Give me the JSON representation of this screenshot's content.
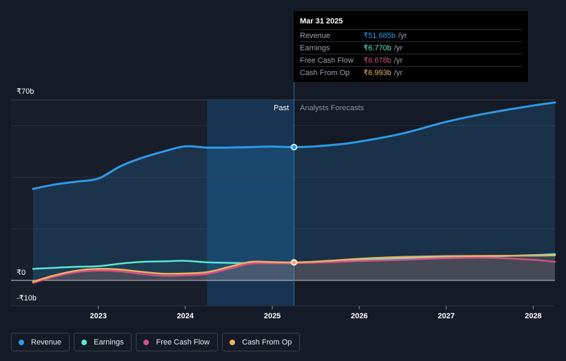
{
  "tooltip": {
    "date": "Mar 31 2025",
    "rows": [
      {
        "name": "Revenue",
        "value": "₹51.685b",
        "unit": "/yr",
        "color": "#2f9ae8"
      },
      {
        "name": "Earnings",
        "value": "₹6.770b",
        "unit": "/yr",
        "color": "#5ce8d2"
      },
      {
        "name": "Free Cash Flow",
        "value": "₹6.678b",
        "unit": "/yr",
        "color": "#d64f88"
      },
      {
        "name": "Cash From Op",
        "value": "₹6.993b",
        "unit": "/yr",
        "color": "#f0b060"
      }
    ]
  },
  "legend": [
    {
      "name": "Revenue",
      "color": "#2f9ae8"
    },
    {
      "name": "Earnings",
      "color": "#5ce8d2"
    },
    {
      "name": "Free Cash Flow",
      "color": "#d64f88"
    },
    {
      "name": "Cash From Op",
      "color": "#f0b060"
    }
  ],
  "chart_data": {
    "type": "line",
    "title": "",
    "xlabel": "",
    "ylabel": "",
    "y_tick_labels": [
      "₹70b",
      "₹0",
      "-₹10b"
    ],
    "x_tick_labels": [
      "2023",
      "2024",
      "2025",
      "2026",
      "2027",
      "2028"
    ],
    "x_ticks": [
      2023,
      2024,
      2025,
      2026,
      2027,
      2028
    ],
    "xlim": [
      2022.25,
      2028.25
    ],
    "ylim": [
      -10,
      70
    ],
    "past_label": "Past",
    "forecast_label": "Analysts Forecasts",
    "highlight_start": 2024.25,
    "divider": 2025.25,
    "series": [
      {
        "name": "Revenue",
        "color": "#2f9ae8",
        "x": [
          2022.25,
          2022.5,
          2022.75,
          2023.0,
          2023.25,
          2023.5,
          2023.75,
          2024.0,
          2024.25,
          2024.5,
          2024.75,
          2025.0,
          2025.25,
          2025.5,
          2025.75,
          2026.0,
          2026.5,
          2027.0,
          2027.5,
          2028.0,
          2028.25
        ],
        "y": [
          35.5,
          37.2,
          38.3,
          39.5,
          44.2,
          47.5,
          50.0,
          52.0,
          51.5,
          51.5,
          51.7,
          51.9,
          51.685,
          52.0,
          52.7,
          53.8,
          57.0,
          61.5,
          65.0,
          67.8,
          69.0
        ]
      },
      {
        "name": "Earnings",
        "color": "#5ce8d2",
        "x": [
          2022.25,
          2022.5,
          2022.75,
          2023.0,
          2023.25,
          2023.5,
          2023.75,
          2024.0,
          2024.25,
          2024.5,
          2024.75,
          2025.0,
          2025.25,
          2025.5,
          2025.75,
          2026.0,
          2026.5,
          2027.0,
          2027.5,
          2028.0,
          2028.25
        ],
        "y": [
          4.5,
          4.9,
          5.3,
          5.5,
          6.5,
          7.2,
          7.4,
          7.6,
          7.0,
          6.8,
          6.7,
          6.8,
          6.77,
          7.0,
          7.4,
          7.8,
          8.5,
          9.0,
          9.3,
          9.8,
          10.2
        ]
      },
      {
        "name": "Free Cash Flow",
        "color": "#d64f88",
        "x": [
          2022.25,
          2022.5,
          2022.75,
          2023.0,
          2023.25,
          2023.5,
          2023.75,
          2024.0,
          2024.25,
          2024.5,
          2024.75,
          2025.0,
          2025.25,
          2025.5,
          2025.75,
          2026.0,
          2026.5,
          2027.0,
          2027.5,
          2028.0,
          2028.25
        ],
        "y": [
          -1.0,
          1.5,
          3.2,
          3.8,
          3.5,
          2.5,
          1.8,
          2.0,
          2.5,
          4.5,
          6.5,
          6.6,
          6.678,
          6.9,
          7.2,
          7.5,
          8.0,
          8.6,
          8.8,
          8.0,
          7.2
        ]
      },
      {
        "name": "Cash From Op",
        "color": "#f0b060",
        "x": [
          2022.25,
          2022.5,
          2022.75,
          2023.0,
          2023.25,
          2023.5,
          2023.75,
          2024.0,
          2024.25,
          2024.5,
          2024.75,
          2025.0,
          2025.25,
          2025.5,
          2025.75,
          2026.0,
          2026.5,
          2027.0,
          2027.5,
          2028.0,
          2028.25
        ],
        "y": [
          -0.5,
          2.0,
          3.8,
          4.5,
          4.2,
          3.3,
          2.6,
          2.7,
          3.2,
          5.2,
          7.2,
          7.1,
          6.993,
          7.3,
          7.8,
          8.4,
          9.1,
          9.4,
          9.5,
          9.6,
          9.7
        ]
      }
    ]
  }
}
